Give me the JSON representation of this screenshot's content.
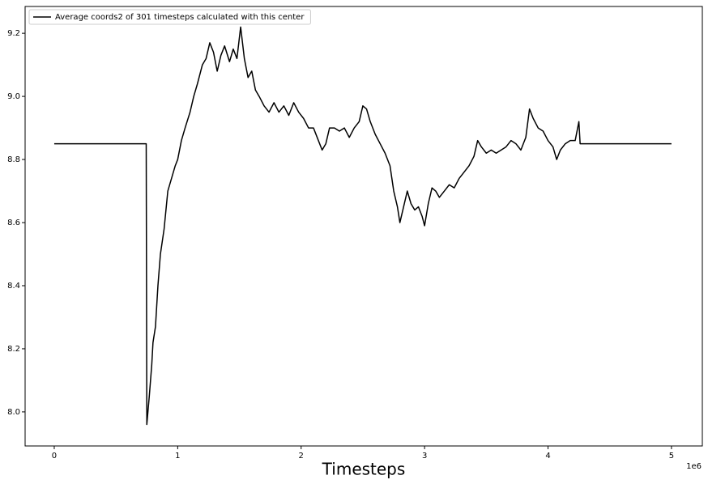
{
  "chart_data": {
    "type": "line",
    "xlabel": "Timesteps",
    "x_offset_label": "1e6",
    "x": [
      0,
      745000,
      750000,
      770000,
      790000,
      800000,
      820000,
      840000,
      860000,
      890000,
      920000,
      950000,
      980000,
      1000000,
      1030000,
      1060000,
      1100000,
      1130000,
      1160000,
      1200000,
      1230000,
      1260000,
      1290000,
      1320000,
      1350000,
      1380000,
      1420000,
      1450000,
      1480000,
      1510000,
      1540000,
      1570000,
      1600000,
      1630000,
      1660000,
      1700000,
      1740000,
      1780000,
      1820000,
      1860000,
      1900000,
      1940000,
      1980000,
      2020000,
      2060000,
      2100000,
      2140000,
      2170000,
      2200000,
      2230000,
      2270000,
      2310000,
      2350000,
      2390000,
      2430000,
      2470000,
      2500000,
      2530000,
      2560000,
      2600000,
      2640000,
      2680000,
      2720000,
      2750000,
      2780000,
      2800000,
      2830000,
      2860000,
      2890000,
      2920000,
      2950000,
      2980000,
      3000000,
      3030000,
      3060000,
      3090000,
      3120000,
      3160000,
      3200000,
      3240000,
      3280000,
      3320000,
      3360000,
      3400000,
      3430000,
      3460000,
      3500000,
      3540000,
      3580000,
      3620000,
      3660000,
      3700000,
      3740000,
      3780000,
      3820000,
      3850000,
      3880000,
      3920000,
      3960000,
      4000000,
      4040000,
      4070000,
      4100000,
      4140000,
      4180000,
      4220000,
      4250000,
      4260000,
      5000000
    ],
    "series": [
      {
        "name": "Average coords2 of 301 timesteps calculated with this center",
        "color": "#000000",
        "values": [
          8.85,
          8.85,
          7.96,
          8.05,
          8.15,
          8.22,
          8.27,
          8.4,
          8.5,
          8.58,
          8.7,
          8.74,
          8.78,
          8.8,
          8.86,
          8.9,
          8.95,
          9.0,
          9.04,
          9.1,
          9.12,
          9.17,
          9.14,
          9.08,
          9.13,
          9.16,
          9.11,
          9.15,
          9.12,
          9.22,
          9.12,
          9.06,
          9.08,
          9.02,
          9.0,
          8.97,
          8.95,
          8.98,
          8.95,
          8.97,
          8.94,
          8.98,
          8.95,
          8.93,
          8.9,
          8.9,
          8.86,
          8.83,
          8.85,
          8.9,
          8.9,
          8.89,
          8.9,
          8.87,
          8.9,
          8.92,
          8.97,
          8.96,
          8.92,
          8.88,
          8.85,
          8.82,
          8.78,
          8.7,
          8.65,
          8.6,
          8.65,
          8.7,
          8.66,
          8.64,
          8.65,
          8.62,
          8.59,
          8.66,
          8.71,
          8.7,
          8.68,
          8.7,
          8.72,
          8.71,
          8.74,
          8.76,
          8.78,
          8.81,
          8.86,
          8.84,
          8.82,
          8.83,
          8.82,
          8.83,
          8.84,
          8.86,
          8.85,
          8.83,
          8.87,
          8.96,
          8.93,
          8.9,
          8.89,
          8.86,
          8.84,
          8.8,
          8.83,
          8.85,
          8.86,
          8.86,
          8.92,
          8.85,
          8.85
        ]
      }
    ],
    "xlim": [
      -236000,
      5250000
    ],
    "ylim": [
      7.892,
      9.285
    ],
    "xticks": [
      {
        "value": 0,
        "label": "0"
      },
      {
        "value": 1000000,
        "label": "1"
      },
      {
        "value": 2000000,
        "label": "2"
      },
      {
        "value": 3000000,
        "label": "3"
      },
      {
        "value": 4000000,
        "label": "4"
      },
      {
        "value": 5000000,
        "label": "5"
      }
    ],
    "yticks": [
      {
        "value": 8.0,
        "label": "8.0"
      },
      8.2,
      8.4,
      8.6,
      8.8,
      {
        "value": 9.0,
        "label": "9.0"
      },
      9.2
    ],
    "legend": "upper left"
  }
}
